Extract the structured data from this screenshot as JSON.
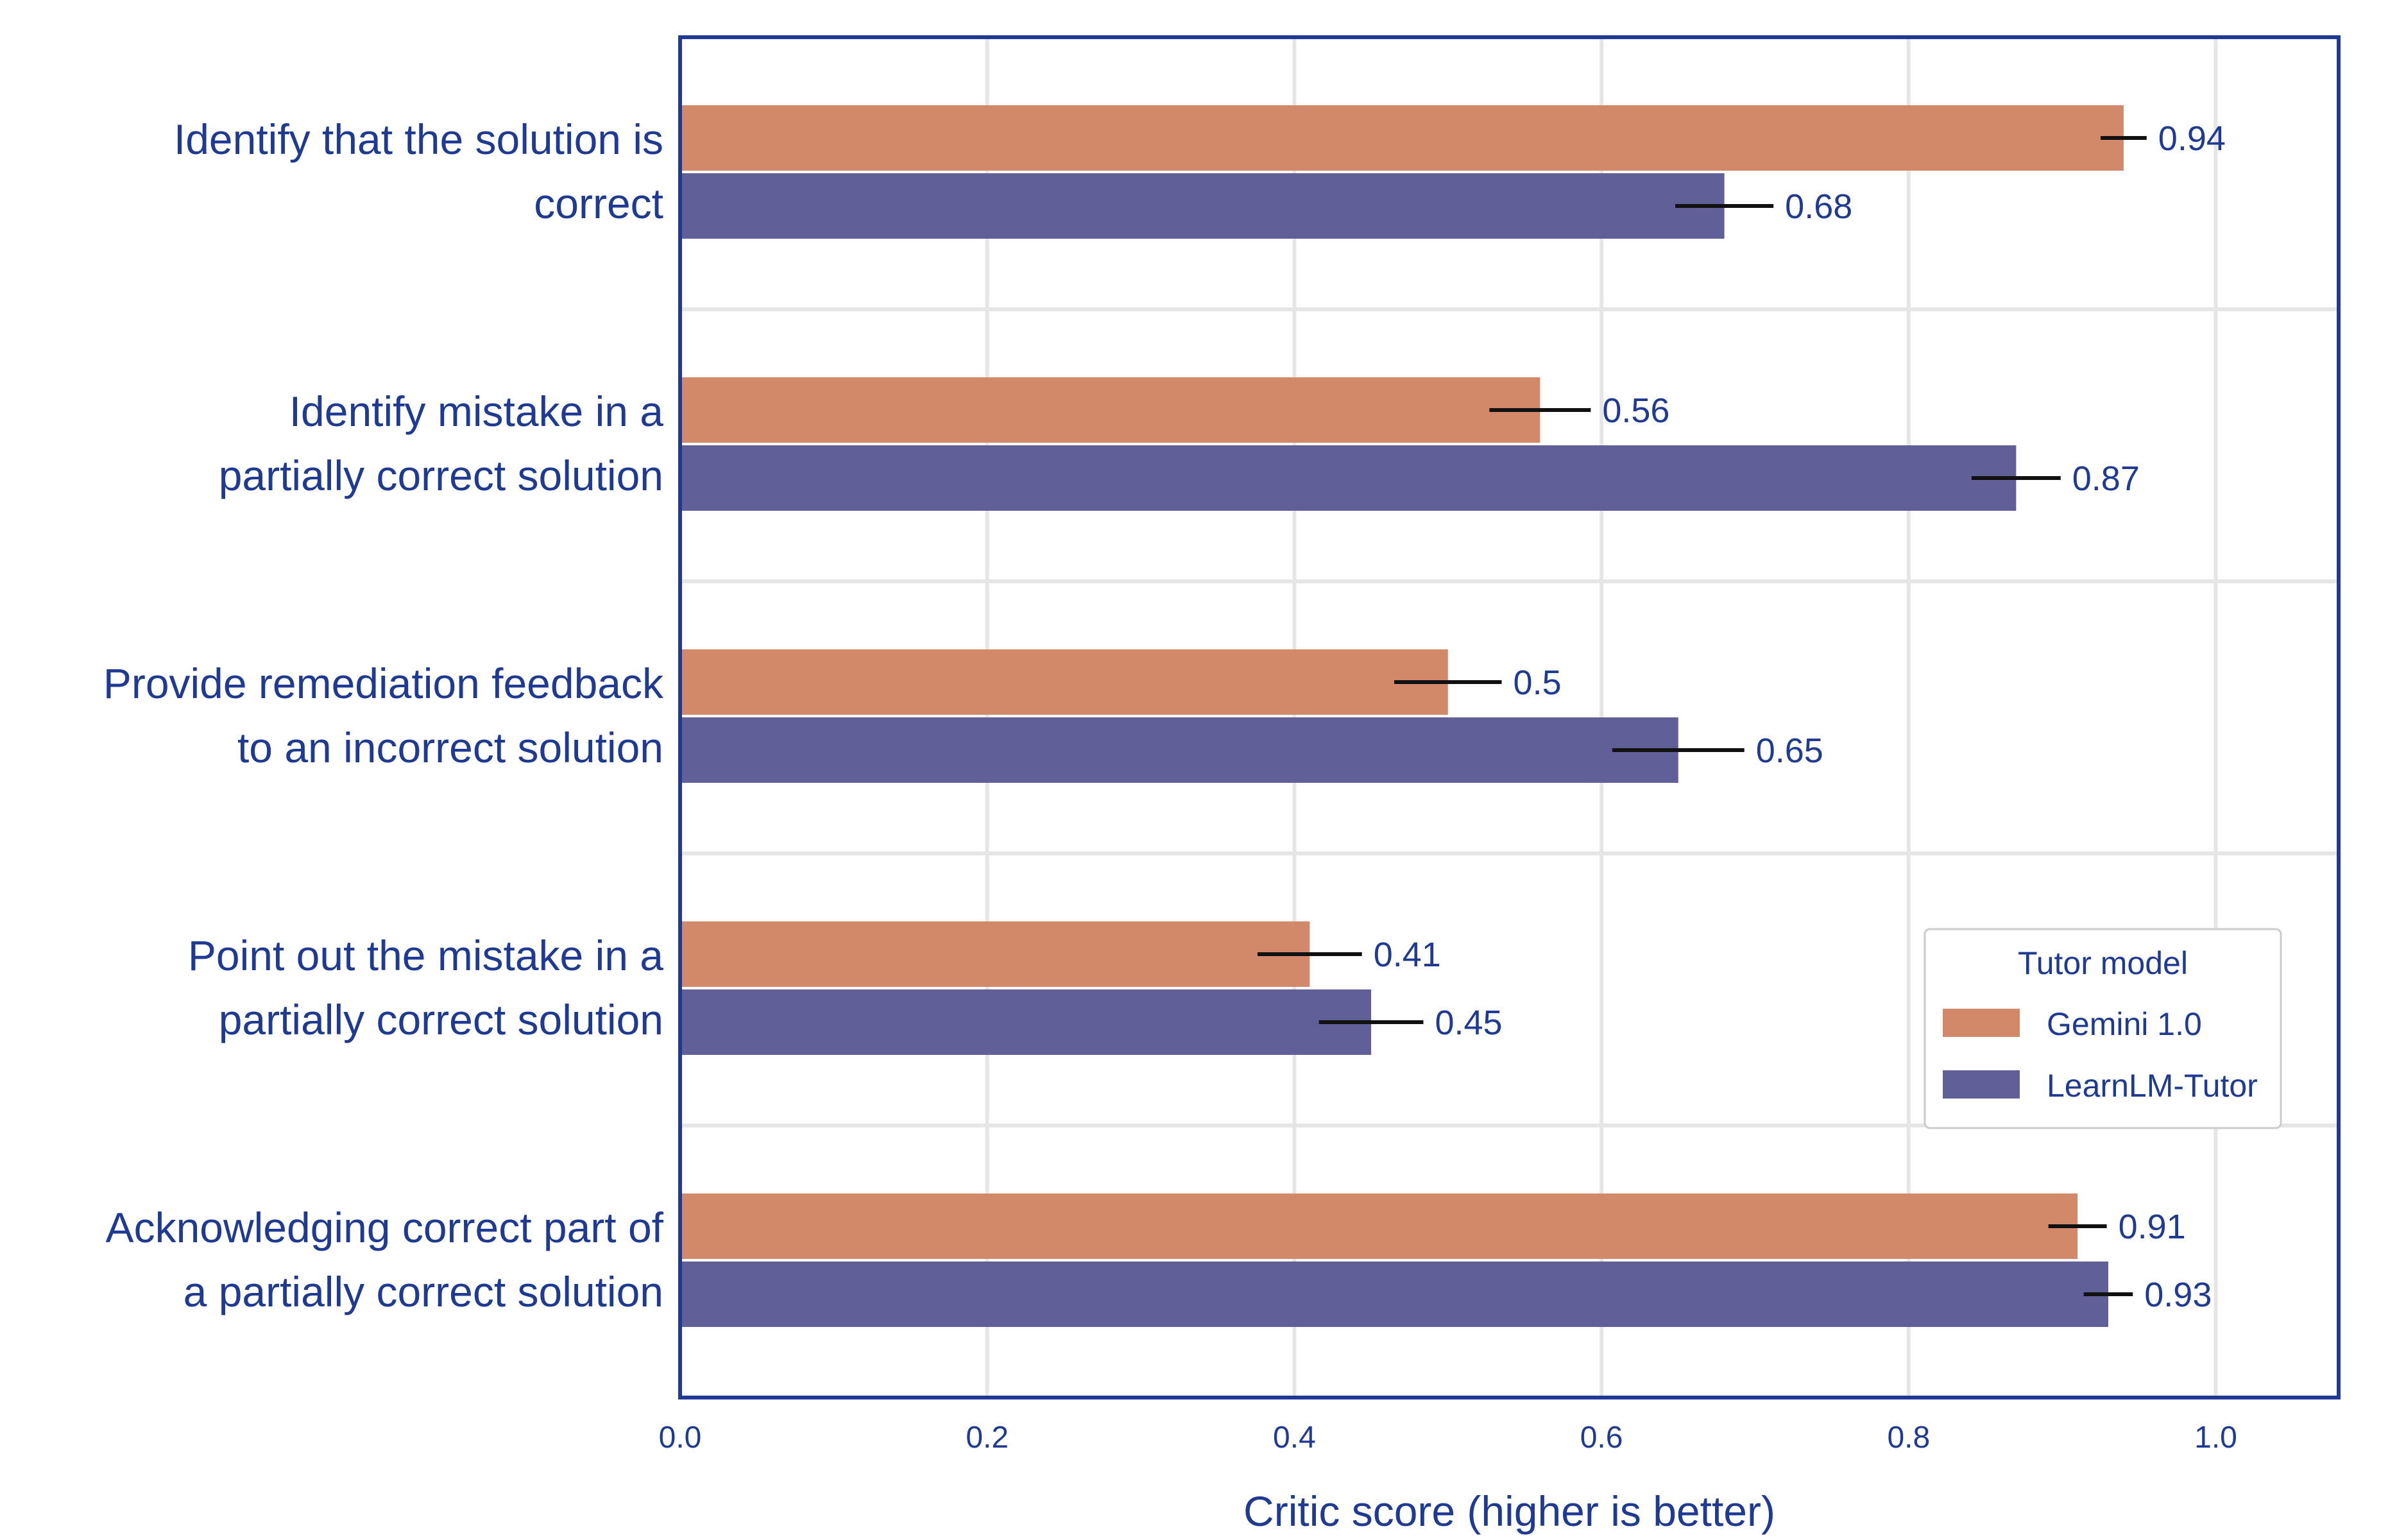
{
  "chart_data": {
    "type": "bar",
    "orientation": "horizontal",
    "title": "",
    "xlabel": "Critic score (higher is better)",
    "ylabel": "",
    "xlim": [
      0,
      1.08
    ],
    "xticks": [
      "0.0",
      "0.2",
      "0.4",
      "0.6",
      "0.8",
      "1.0"
    ],
    "grid": true,
    "categories": [
      [
        "Identify that the solution is",
        "correct"
      ],
      [
        "Identify mistake in a",
        "partially correct solution"
      ],
      [
        "Provide remediation feedback",
        "to an incorrect solution"
      ],
      [
        "Point out the mistake in a",
        "partially correct solution"
      ],
      [
        "Acknowledging correct part of",
        "a partially correct solution"
      ]
    ],
    "series": [
      {
        "name": "Gemini 1.0",
        "color": "#d2896a",
        "values": [
          0.94,
          0.56,
          0.5,
          0.41,
          0.91
        ],
        "labels": [
          "0.94",
          "0.56",
          "0.5",
          "0.41",
          "0.91"
        ],
        "err": [
          0.015,
          0.033,
          0.035,
          0.034,
          0.019
        ]
      },
      {
        "name": "LearnLM-Tutor",
        "color": "#615f98",
        "values": [
          0.68,
          0.87,
          0.65,
          0.45,
          0.93
        ],
        "labels": [
          "0.68",
          "0.87",
          "0.65",
          "0.45",
          "0.93"
        ],
        "err": [
          0.032,
          0.029,
          0.043,
          0.034,
          0.016
        ]
      }
    ],
    "legend": {
      "title": "Tutor model",
      "placement": "lower-right"
    }
  }
}
